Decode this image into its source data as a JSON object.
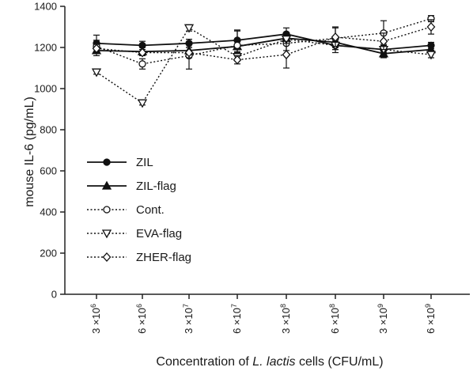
{
  "chart_data": {
    "type": "line",
    "title": "",
    "ylabel": "mouse IL-6 (pg/mL)",
    "xlabel_parts": [
      "Concentration of ",
      "L. lactis",
      " cells (CFU/mL)"
    ],
    "ylim": [
      0,
      1400
    ],
    "yticks": [
      0,
      200,
      400,
      600,
      800,
      1000,
      1200,
      1400
    ],
    "categories": [
      {
        "coef": "3",
        "exp": "6"
      },
      {
        "coef": "6",
        "exp": "6"
      },
      {
        "coef": "3",
        "exp": "7"
      },
      {
        "coef": "6",
        "exp": "7"
      },
      {
        "coef": "3",
        "exp": "8"
      },
      {
        "coef": "6",
        "exp": "8"
      },
      {
        "coef": "3",
        "exp": "9"
      },
      {
        "coef": "6",
        "exp": "9"
      }
    ],
    "grid": false,
    "legend_position": "left-center",
    "series": [
      {
        "name": "ZIL",
        "marker": "circle-filled",
        "line": "solid",
        "values": [
          1220,
          1210,
          1220,
          1235,
          1265,
          1210,
          1190,
          1210
        ],
        "errors": [
          40,
          20,
          20,
          45,
          30,
          35,
          25,
          15
        ]
      },
      {
        "name": "ZIL-flag",
        "marker": "triangle-filled",
        "line": "solid",
        "values": [
          1185,
          1180,
          1185,
          1205,
          1245,
          1225,
          1170,
          1190
        ],
        "errors": [
          25,
          20,
          30,
          25,
          20,
          25,
          20,
          15
        ]
      },
      {
        "name": "Cont.",
        "marker": "circle-open",
        "line": "dotted",
        "values": [
          1205,
          1120,
          1160,
          1210,
          1220,
          1245,
          1270,
          1340
        ],
        "errors": [
          30,
          25,
          65,
          75,
          35,
          55,
          60,
          15
        ]
      },
      {
        "name": "EVA-flag",
        "marker": "triangle-down-open",
        "line": "dotted",
        "values": [
          1080,
          930,
          1295,
          1155,
          1240,
          1210,
          1190,
          1165
        ],
        "errors": [
          10,
          10,
          15,
          20,
          20,
          20,
          15,
          15
        ]
      },
      {
        "name": "ZHER-flag",
        "marker": "diamond-open",
        "line": "dotted",
        "values": [
          1195,
          1175,
          1175,
          1140,
          1165,
          1250,
          1230,
          1300
        ],
        "errors": [
          20,
          15,
          25,
          20,
          65,
          45,
          40,
          35
        ]
      }
    ]
  }
}
